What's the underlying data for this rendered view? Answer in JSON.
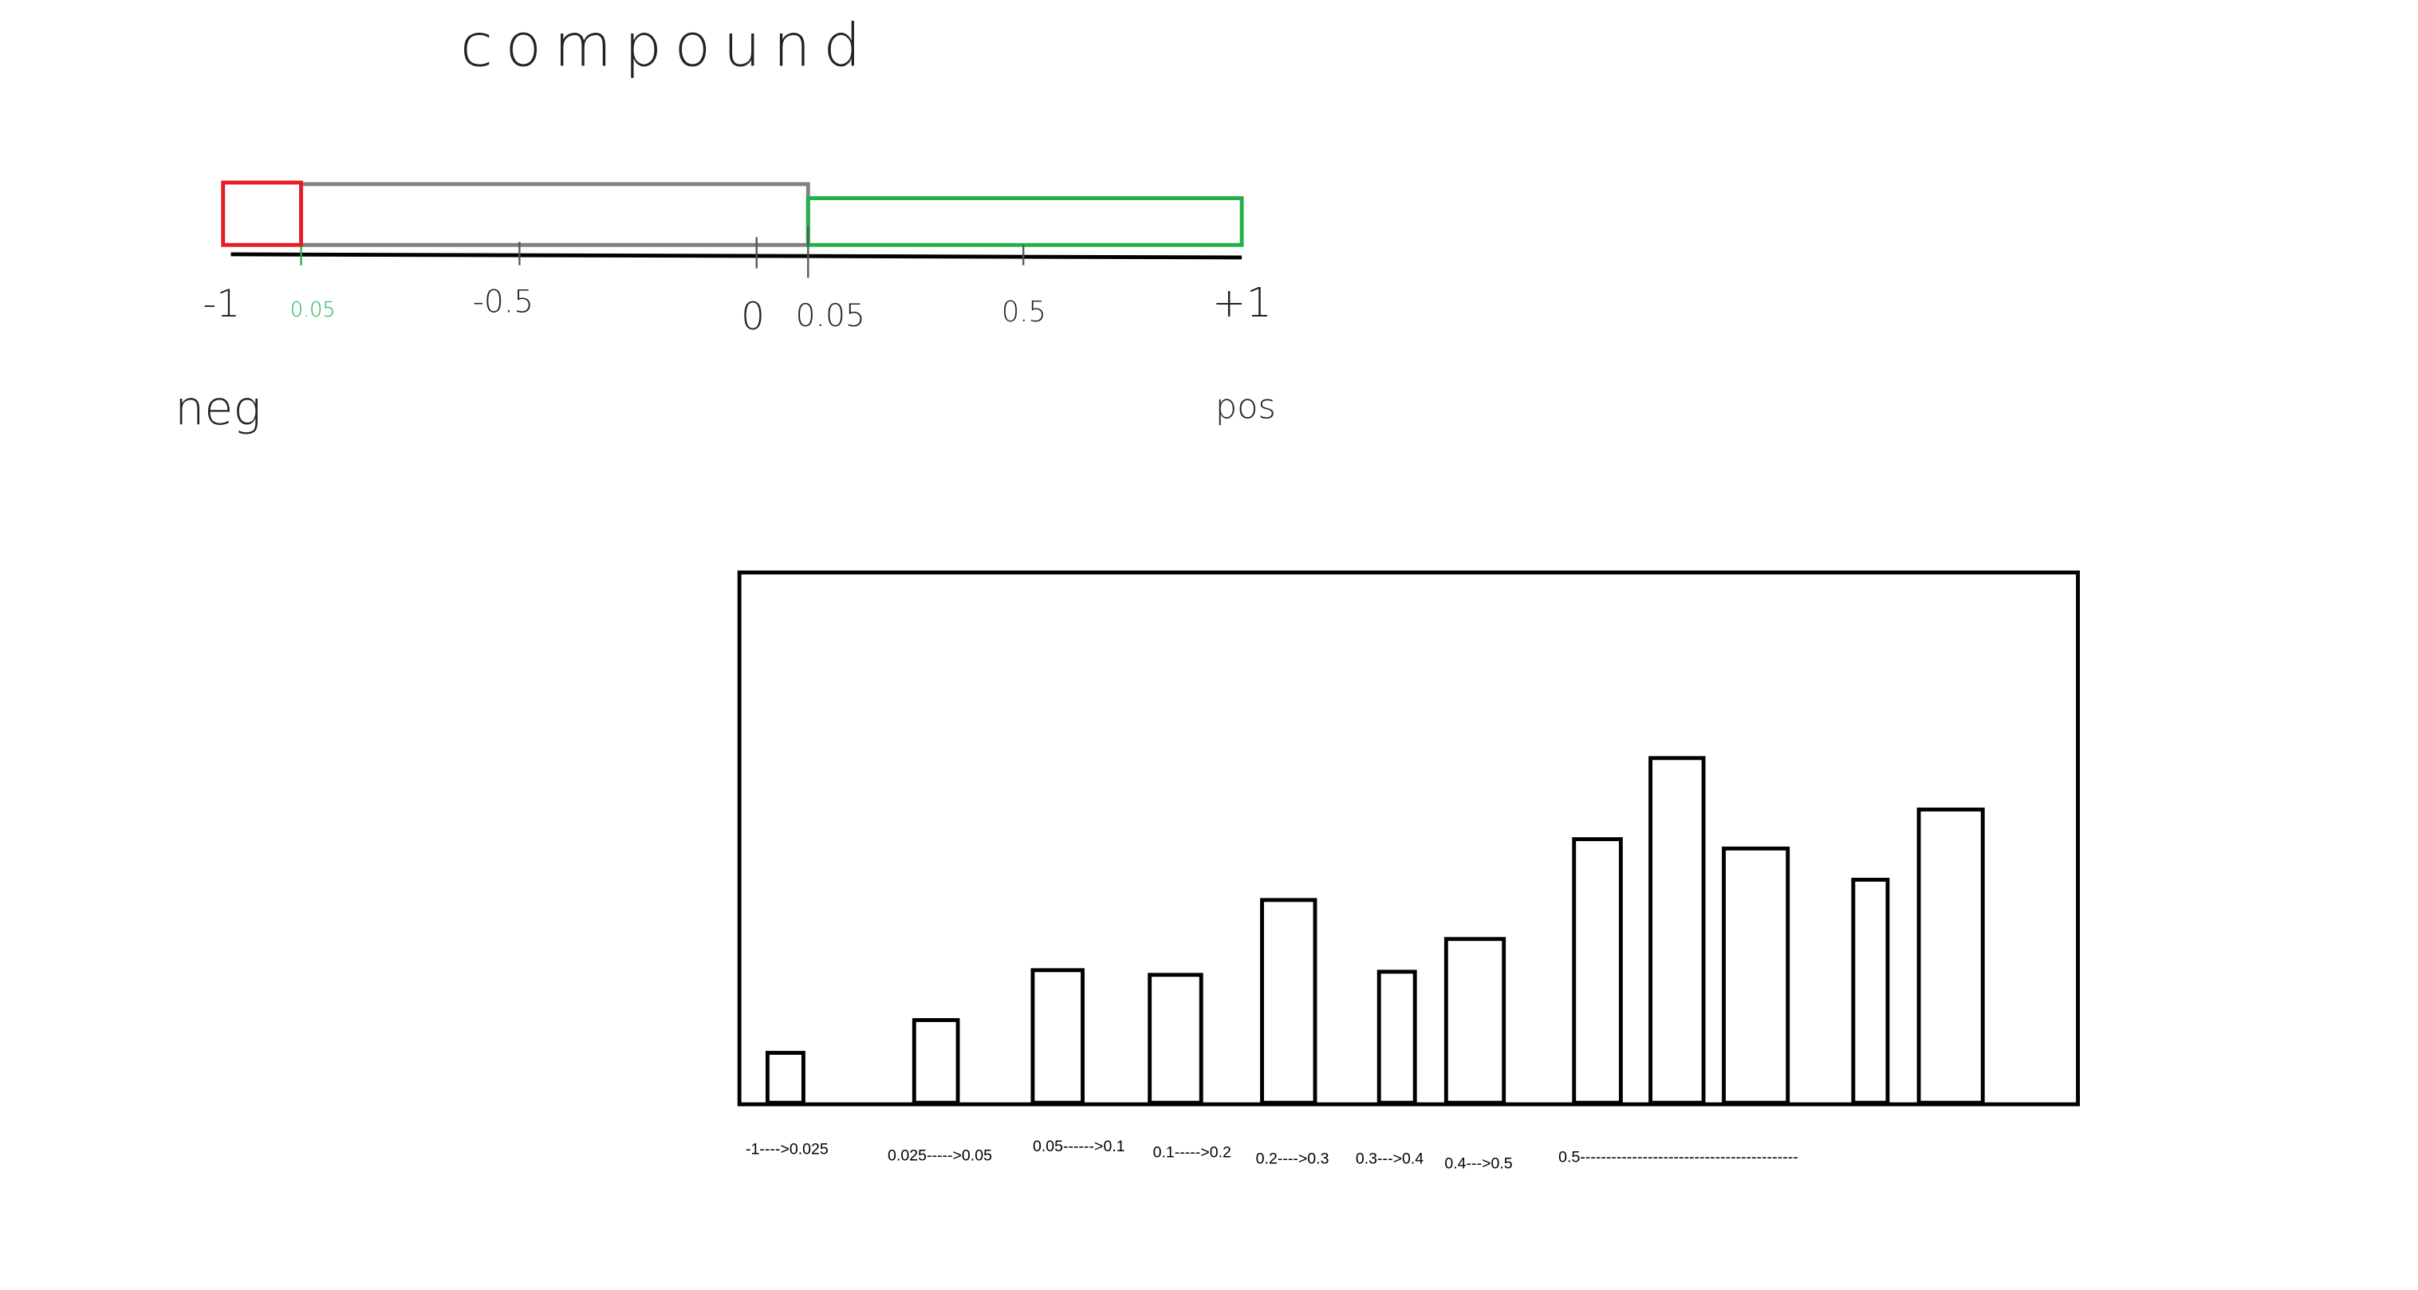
{
  "header": {
    "title": "compound"
  },
  "number_line": {
    "labels": [
      "-1",
      "0.05",
      "-0.5",
      "0",
      "0.05",
      "0.5",
      "+1"
    ],
    "neg": "neg",
    "pos": "pos"
  },
  "chart": {
    "x_labels": [
      "-1---->0.025",
      "0.025----->0.05",
      "0.05------>0.1",
      "0.1----->0.2",
      "0.2---->0.3",
      "0.3--->0.4",
      "0.4--->0.5",
      "0.5------------------------------------------"
    ]
  }
}
